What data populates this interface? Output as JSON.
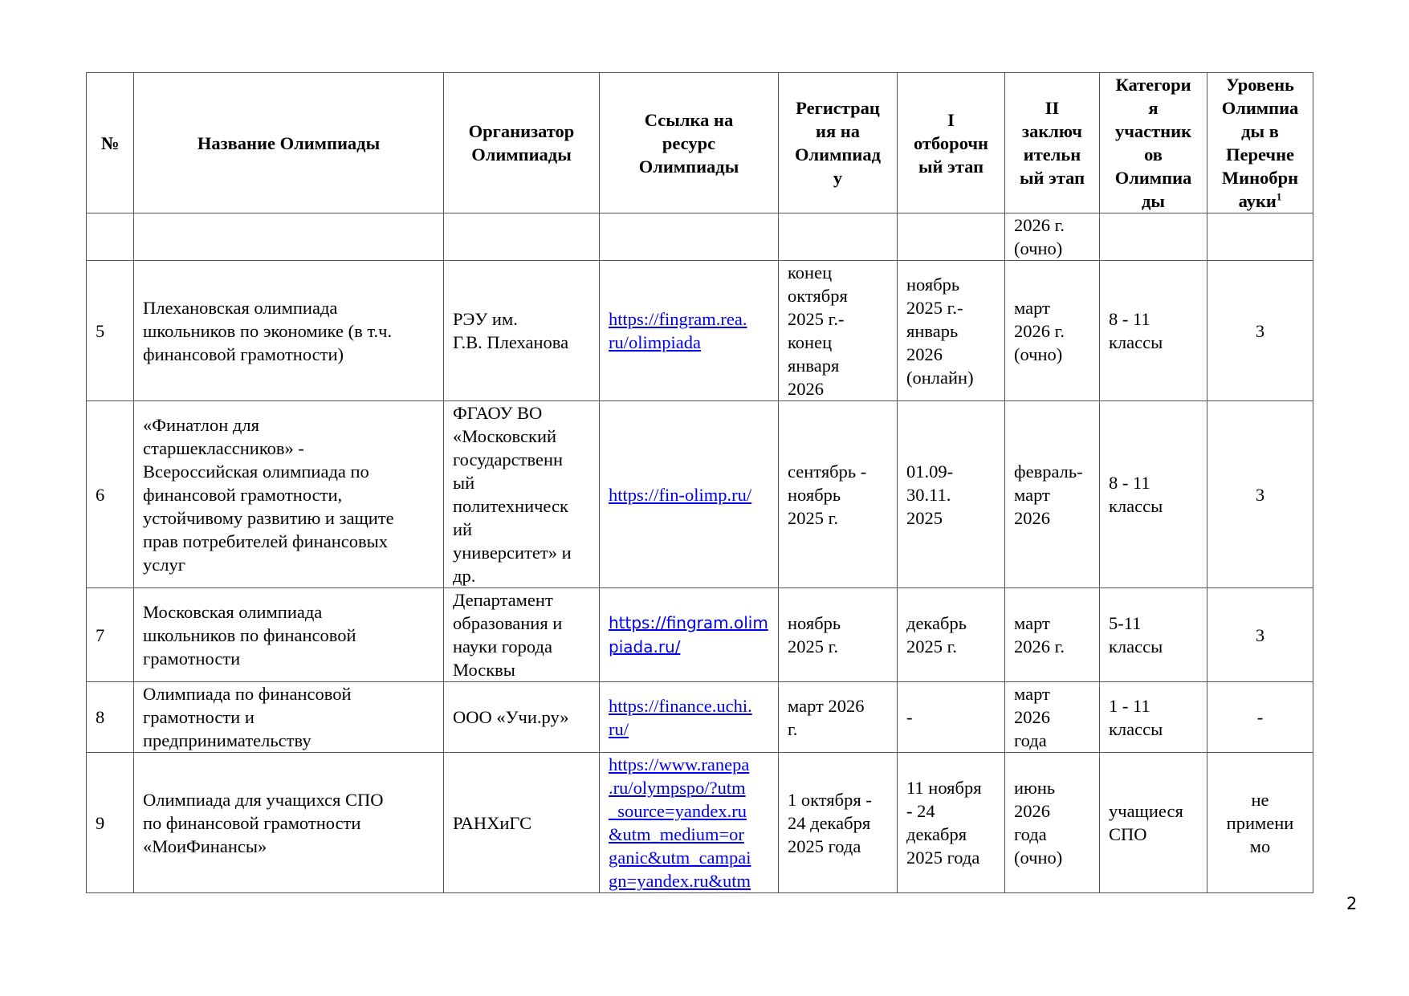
{
  "headers": {
    "num": "№",
    "name": "Название Олимпиады",
    "organizer": "Организатор\nОлимпиады",
    "link": "Ссылка на\nресурс\nОлимпиады",
    "registration": "Регистрац\nия на\nОлимпиад\nу",
    "stage1": "I\nотборочн\nый этап",
    "stage2": "II\nзаключ\nительн\nый этап",
    "category": "Категори\nя\nучастник\nов\nОлимпиа\nды",
    "level": "Уровень\nОлимпиа\nды в\nПеречне\nМинобрн\nауки",
    "level_footnote": "1"
  },
  "rows": [
    {
      "num": "",
      "name": "",
      "organizer": "",
      "link": "",
      "registration": "",
      "stage1": "",
      "stage2": "2026 г.\n(очно)",
      "category": "",
      "level": ""
    },
    {
      "num": "5",
      "name": "Плехановская олимпиада\nшкольников по экономике (в т.ч.\nфинансовой грамотности)",
      "organizer": "РЭУ им.\nГ.В. Плеханова",
      "link": "https://fingram.rea.\nru/olimpiada",
      "registration": "конец\nоктября\n2025 г.-\nконец\nянваря\n2026",
      "stage1": "ноябрь\n2025 г.-\nянварь\n2026\n(онлайн)",
      "stage2": "март\n2026 г.\n(очно)",
      "category": "8 - 11\nклассы",
      "level": "3"
    },
    {
      "num": "6",
      "name": "«Финатлон для\nстаршеклассников» -\nВсероссийская олимпиада по\nфинансовой грамотности,\nустойчивому развитию и защите\nправ потребителей финансовых\nуслуг",
      "organizer": "ФГАОУ ВО\n«Московский\nгосударственн\nый\nполитехническ\nий\nуниверситет» и\nдр.",
      "link": "https://fin-olimp.ru/",
      "registration": "сентябрь -\nноябрь\n2025 г.",
      "stage1": "01.09-\n30.11.\n2025",
      "stage2": "февраль-\nмарт\n2026",
      "category": "8 - 11\nклассы",
      "level": "3"
    },
    {
      "num": "7",
      "name": "Московская олимпиада\nшкольников по финансовой\nграмотности",
      "organizer": "Департамент\nобразования и\nнауки города\nМосквы",
      "link": "https://fingram.olim\npiada.ru/",
      "registration": "ноябрь\n2025 г.",
      "stage1": "декабрь\n2025 г.",
      "stage2": "март\n2026 г.",
      "category": "5-11\nклассы",
      "level": "3"
    },
    {
      "num": "8",
      "name": "Олимпиада по финансовой\nграмотности и\nпредпринимательству",
      "organizer": "ООО «Учи.ру»",
      "link": "https://finance.uchi.\nru/",
      "registration": "март 2026\nг.",
      "stage1": "-",
      "stage2": "март\n2026\nгода",
      "category": "1 - 11\nклассы",
      "level": "-"
    },
    {
      "num": "9",
      "name": "Олимпиада для учащихся СПО\nпо финансовой грамотности\n«МоиФинансы»",
      "organizer": "РАНХиГС",
      "link": "https://www.ranepa\n.ru/olympspo/?utm\n_source=yandex.ru\n&utm_medium=or\nganic&utm_campai\ngn=yandex.ru&utm",
      "registration": "1 октября -\n24 декабря\n2025 года",
      "stage1": "11 ноября\n- 24\nдекабря\n2025 года",
      "stage2": "июнь\n2026\nгода\n(очно)",
      "category": "учащиеся\nСПО",
      "level": "не\nпримени\nмо"
    }
  ],
  "link_color": "#0000ee",
  "page_number": "2"
}
